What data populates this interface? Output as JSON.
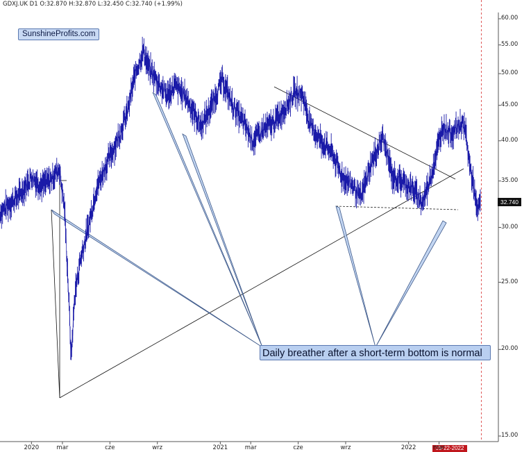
{
  "header": {
    "text": "GDXJ.UK  D1  O:32.870  H:32.870  L:32.450  C:32.740  (+1.99%)"
  },
  "logo": {
    "text": "SunshineProfits.com"
  },
  "callout": {
    "text": "Daily breather after a short-term bottom is normal"
  },
  "price_badge": {
    "text": "32.740",
    "value": 32.74
  },
  "date_badge": {
    "text": "05-22-2022"
  },
  "colors": {
    "price": "#1a1aa8",
    "callout_bg": "#b9cff0",
    "badge": "#c0171d",
    "dotted_line": "#e05555"
  },
  "chart_data": {
    "type": "line",
    "title": "GDXJ.UK D1",
    "y_scale": "log",
    "ylim": [
      14.5,
      63.0
    ],
    "y_ticks": [
      {
        "label": "60.00",
        "value": 60
      },
      {
        "label": "55.00",
        "value": 55
      },
      {
        "label": "50.00",
        "value": 50
      },
      {
        "label": "45.00",
        "value": 45
      },
      {
        "label": "40.00",
        "value": 40
      },
      {
        "label": "35.00",
        "value": 35
      },
      {
        "label": "30.00",
        "value": 30
      },
      {
        "label": "25.00",
        "value": 25
      },
      {
        "label": "20.00",
        "value": 20
      },
      {
        "label": "15.00",
        "value": 15
      }
    ],
    "x_range": [
      "2019-11-01",
      "2022-06-24"
    ],
    "x_ticks": [
      {
        "label": "2020",
        "date": "2020-01-01"
      },
      {
        "label": "mar",
        "date": "2020-03-01"
      },
      {
        "label": "cze",
        "date": "2020-06-01"
      },
      {
        "label": "wrz",
        "date": "2020-09-01"
      },
      {
        "label": "2021",
        "date": "2021-01-01"
      },
      {
        "label": "mar",
        "date": "2021-03-01"
      },
      {
        "label": "cze",
        "date": "2021-06-01"
      },
      {
        "label": "wrz",
        "date": "2021-09-01"
      },
      {
        "label": "2022",
        "date": "2022-01-01"
      },
      {
        "label": "mar",
        "date": "2022-03-01"
      }
    ],
    "series": [
      {
        "name": "GDXJ.UK",
        "points": [
          [
            "2019-11-01",
            31.5
          ],
          [
            "2019-11-20",
            32.5
          ],
          [
            "2019-12-10",
            33.5
          ],
          [
            "2020-01-01",
            35.5
          ],
          [
            "2020-01-20",
            34.5
          ],
          [
            "2020-02-05",
            35.0
          ],
          [
            "2020-02-24",
            36.5
          ],
          [
            "2020-03-05",
            32.0
          ],
          [
            "2020-03-12",
            25.0
          ],
          [
            "2020-03-18",
            19.5
          ],
          [
            "2020-03-25",
            24.0
          ],
          [
            "2020-04-05",
            27.0
          ],
          [
            "2020-04-20",
            30.0
          ],
          [
            "2020-05-05",
            34.0
          ],
          [
            "2020-05-25",
            37.0
          ],
          [
            "2020-06-15",
            40.0
          ],
          [
            "2020-07-05",
            44.0
          ],
          [
            "2020-07-20",
            50.0
          ],
          [
            "2020-08-05",
            54.0
          ],
          [
            "2020-08-15",
            51.0
          ],
          [
            "2020-08-30",
            49.0
          ],
          [
            "2020-09-20",
            46.5
          ],
          [
            "2020-10-05",
            48.0
          ],
          [
            "2020-10-25",
            46.5
          ],
          [
            "2020-11-10",
            44.0
          ],
          [
            "2020-11-25",
            42.0
          ],
          [
            "2020-12-15",
            45.0
          ],
          [
            "2021-01-05",
            49.0
          ],
          [
            "2021-01-25",
            45.0
          ],
          [
            "2021-02-15",
            42.5
          ],
          [
            "2021-03-05",
            40.0
          ],
          [
            "2021-03-25",
            41.5
          ],
          [
            "2021-04-15",
            42.5
          ],
          [
            "2021-05-05",
            44.5
          ],
          [
            "2021-05-25",
            47.0
          ],
          [
            "2021-06-10",
            46.5
          ],
          [
            "2021-06-25",
            42.0
          ],
          [
            "2021-07-15",
            40.0
          ],
          [
            "2021-08-05",
            38.5
          ],
          [
            "2021-08-25",
            35.5
          ],
          [
            "2021-09-15",
            34.5
          ],
          [
            "2021-09-30",
            33.0
          ],
          [
            "2021-10-20",
            37.0
          ],
          [
            "2021-11-12",
            40.5
          ],
          [
            "2021-12-01",
            35.5
          ],
          [
            "2021-12-20",
            35.0
          ],
          [
            "2022-01-10",
            34.0
          ],
          [
            "2022-01-28",
            32.5
          ],
          [
            "2022-02-15",
            36.0
          ],
          [
            "2022-03-08",
            42.0
          ],
          [
            "2022-03-25",
            41.0
          ],
          [
            "2022-04-15",
            42.5
          ],
          [
            "2022-04-22",
            41.0
          ],
          [
            "2022-04-28",
            37.5
          ],
          [
            "2022-05-05",
            35.0
          ],
          [
            "2022-05-10",
            33.5
          ],
          [
            "2022-05-13",
            31.5
          ],
          [
            "2022-05-17",
            32.0
          ],
          [
            "2022-05-20",
            32.74
          ]
        ]
      }
    ],
    "last_close": 32.74,
    "grid": false,
    "vertical_marker": {
      "date": "2022-05-22",
      "label": "05-22-2022"
    }
  }
}
